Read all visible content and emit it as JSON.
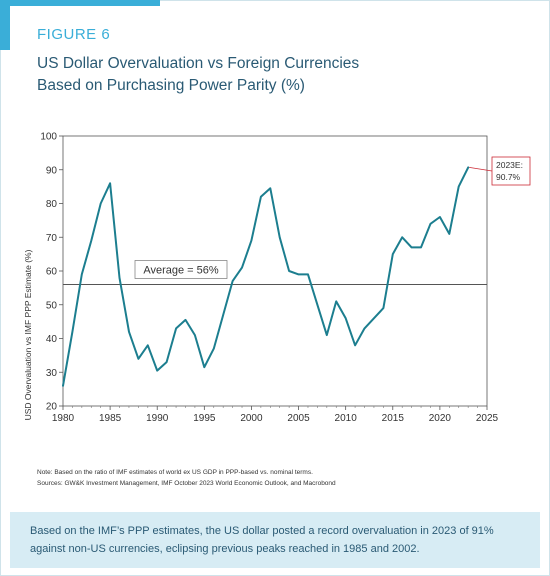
{
  "figure_label": "FIGURE 6",
  "title_line1": "US Dollar Overvaluation vs Foreign Currencies",
  "title_line2": "Based on Purchasing Power Parity (%)",
  "chart_data": {
    "type": "line",
    "ylabel": "USD Overvaluation vs IMF PPP Estimate (%)",
    "xlabel": "",
    "xlim": [
      1980,
      2025
    ],
    "ylim": [
      20,
      100
    ],
    "x_ticks": [
      1980,
      1985,
      1990,
      1995,
      2000,
      2005,
      2010,
      2015,
      2020,
      2025
    ],
    "y_ticks": [
      20,
      30,
      40,
      50,
      60,
      70,
      80,
      90,
      100
    ],
    "series": [
      {
        "color": "#1c7e8f",
        "x": [
          1980,
          1981,
          1982,
          1983,
          1984,
          1985,
          1986,
          1987,
          1988,
          1989,
          1990,
          1991,
          1992,
          1993,
          1994,
          1995,
          1996,
          1997,
          1998,
          1999,
          2000,
          2001,
          2002,
          2003,
          2004,
          2005,
          2006,
          2007,
          2008,
          2009,
          2010,
          2011,
          2012,
          2013,
          2014,
          2015,
          2016,
          2017,
          2018,
          2019,
          2020,
          2021,
          2022,
          2023
        ],
        "y": [
          26,
          42,
          59,
          69,
          80,
          86,
          58,
          42,
          34,
          38,
          30.5,
          33,
          43,
          45.5,
          41,
          31.5,
          37,
          47,
          57,
          61,
          69,
          82,
          84.5,
          70,
          60,
          59,
          59,
          50,
          41,
          51,
          46,
          38,
          43,
          46,
          49,
          65,
          70,
          67,
          67,
          74,
          76,
          71,
          85,
          90.7
        ]
      }
    ],
    "reference_line": {
      "value": 56,
      "color": "#555555",
      "label": "Average = 56%"
    },
    "annotation": {
      "line1": "2023E:",
      "line2": "90.7%",
      "color": "#cc2a36"
    },
    "grid": false
  },
  "note_line1": "Note: Based on the ratio of IMF estimates of world ex US GDP in PPP-based vs. nominal terms.",
  "note_line2": "Sources: GW&K Investment Management, IMF October 2023 World Economic Outlook, and Macrobond",
  "summary": "Based on the IMF’s PPP estimates, the US dollar posted a record overvaluation in 2023 of 91% against non-US currencies, eclipsing previous peaks reached in 1985 and 2002."
}
